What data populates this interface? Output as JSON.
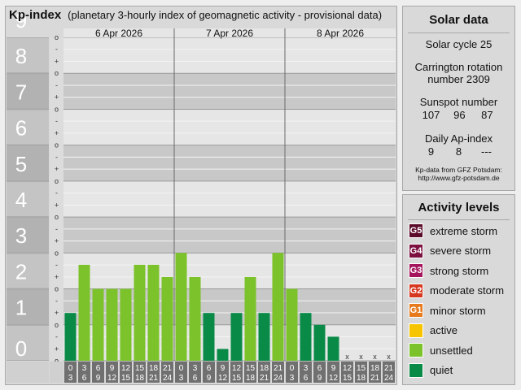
{
  "title": "Kp-index",
  "subtitle": "(planetary 3-hourly index of geomagnetic activity - provisional data)",
  "chart_data": {
    "type": "bar",
    "ylim": [
      0,
      9
    ],
    "y_ticks": [
      "0",
      "1",
      "2",
      "3",
      "4",
      "5",
      "6",
      "7",
      "8",
      "9"
    ],
    "minor_ticks": [
      "o",
      "+",
      "-"
    ],
    "days": [
      "6 Apr 2026",
      "7 Apr 2026",
      "8 Apr 2026"
    ],
    "hour_start": [
      "0",
      "3",
      "6",
      "9",
      "12",
      "15",
      "18",
      "21"
    ],
    "hour_end": [
      "3",
      "6",
      "9",
      "12",
      "15",
      "18",
      "21",
      "24"
    ],
    "values": [
      1.33,
      2.67,
      2.0,
      2.0,
      2.0,
      2.67,
      2.67,
      2.33,
      3.0,
      2.33,
      1.33,
      0.33,
      1.33,
      2.33,
      1.33,
      3.0,
      2.0,
      1.33,
      1.0,
      0.67,
      null,
      null,
      null,
      null
    ],
    "missing_marker": "x"
  },
  "solar_data": {
    "title": "Solar data",
    "solar_cycle": "Solar cycle 25",
    "carrington_line1": "Carrington rotation",
    "carrington_line2": "number 2309",
    "sunspot_label": "Sunspot number",
    "sunspot_values": [
      "107",
      "96",
      "87"
    ],
    "ap_label": "Daily Ap-index",
    "ap_values": [
      "9",
      "8",
      "---"
    ],
    "source_line1": "Kp-data from GFZ Potsdam:",
    "source_line2": "http://www.gfz-potsdam.de"
  },
  "activity_levels": {
    "title": "Activity levels",
    "items": [
      {
        "code": "G5",
        "label": "extreme storm",
        "color": "#5a0b2a"
      },
      {
        "code": "G4",
        "label": "severe storm",
        "color": "#7c1040"
      },
      {
        "code": "G3",
        "label": "strong storm",
        "color": "#a4155e"
      },
      {
        "code": "G2",
        "label": "moderate storm",
        "color": "#d6381f"
      },
      {
        "code": "G1",
        "label": "minor storm",
        "color": "#e67a1c"
      },
      {
        "code": "",
        "label": "active",
        "color": "#f7c400"
      },
      {
        "code": "",
        "label": "unsettled",
        "color": "#7cc22a"
      },
      {
        "code": "",
        "label": "quiet",
        "color": "#0a8a47"
      }
    ]
  },
  "colors": {
    "quiet": "#0a8a47",
    "unsettled": "#7cc22a",
    "active": "#f7c400",
    "tick_band": "#a9a9a9",
    "grid_dark": "#c8c8c8",
    "grid_light": "#e6e6e6",
    "hour_box": "#707070"
  }
}
